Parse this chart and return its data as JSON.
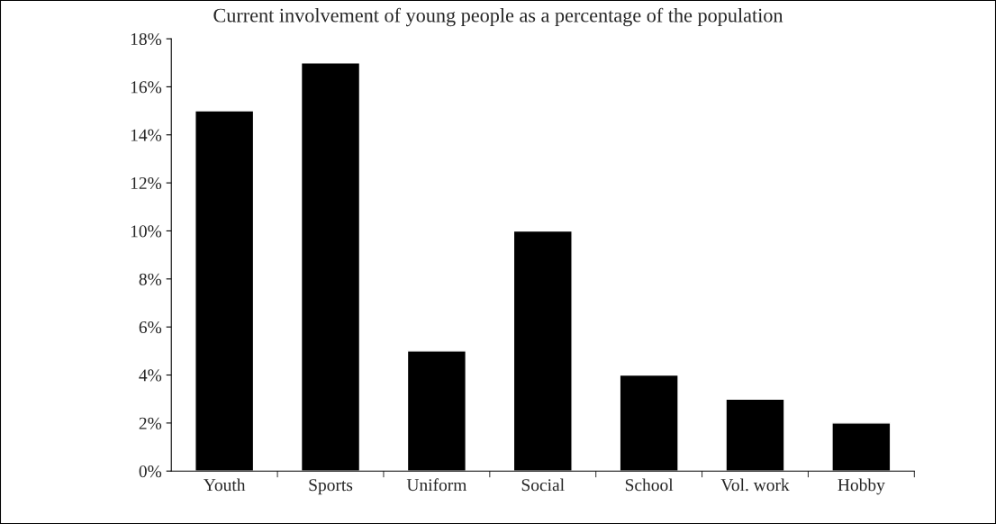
{
  "chart_data": {
    "type": "bar",
    "title": "Current involvement of young people as a percentage of the population",
    "categories": [
      "Youth",
      "Sports",
      "Uniform",
      "Social",
      "School",
      "Vol. work",
      "Hobby"
    ],
    "values": [
      15,
      17,
      5,
      10,
      4,
      3,
      2
    ],
    "color": "#000000",
    "ylim": [
      0,
      18
    ],
    "yticks": [
      {
        "value": 0,
        "label": "0%"
      },
      {
        "value": 2,
        "label": "2%"
      },
      {
        "value": 4,
        "label": "4%"
      },
      {
        "value": 6,
        "label": "6%"
      },
      {
        "value": 8,
        "label": "8%"
      },
      {
        "value": 10,
        "label": "10%"
      },
      {
        "value": 12,
        "label": "12%"
      },
      {
        "value": 14,
        "label": "14%"
      },
      {
        "value": 16,
        "label": "16%"
      },
      {
        "value": 18,
        "label": "18%"
      }
    ],
    "grid": false,
    "legend": false
  }
}
